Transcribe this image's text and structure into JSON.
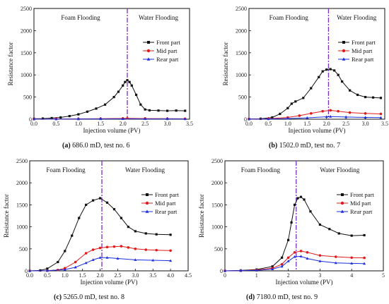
{
  "chart_data": [
    {
      "id": "a",
      "type": "line",
      "caption_letter": "(a)",
      "caption_text": " 686.0 mD, test no. 6",
      "xlabel": "Injection volume (PV)",
      "ylabel": "Resistance factor",
      "xlim": [
        0,
        3.5
      ],
      "ylim": [
        0,
        2500
      ],
      "xticks": [
        "0.0",
        "0.5",
        "1.0",
        "1.5",
        "2.0",
        "2.5",
        "3.0",
        "3.5"
      ],
      "yticks": [
        "0",
        "500",
        "1000",
        "1500",
        "2000",
        "2500"
      ],
      "divider_x": 2.1,
      "region_left": "Foam Flooding",
      "region_right": "Water Flooding",
      "legend_position": "right",
      "series": [
        {
          "name": "Front part",
          "color": "#111111",
          "marker": "square",
          "x": [
            0,
            0.2,
            0.4,
            0.6,
            0.8,
            1.0,
            1.2,
            1.4,
            1.6,
            1.8,
            1.9,
            2.0,
            2.05,
            2.1,
            2.15,
            2.2,
            2.3,
            2.4,
            2.5,
            2.6,
            2.8,
            3.0,
            3.2,
            3.4
          ],
          "y": [
            10,
            15,
            25,
            40,
            70,
            110,
            170,
            240,
            330,
            500,
            620,
            760,
            840,
            880,
            840,
            760,
            550,
            330,
            220,
            200,
            195,
            190,
            195,
            190
          ]
        },
        {
          "name": "Mid part",
          "color": "#e01b1b",
          "marker": "circle",
          "x": [
            0,
            0.5,
            1.0,
            1.5,
            2.0,
            2.1,
            2.5,
            3.0,
            3.4
          ],
          "y": [
            2,
            5,
            8,
            12,
            18,
            20,
            15,
            12,
            10
          ]
        },
        {
          "name": "Rear part",
          "color": "#1b2fe0",
          "marker": "triangle",
          "x": [
            0,
            0.5,
            1.0,
            1.5,
            2.0,
            2.5,
            3.0,
            3.4
          ],
          "y": [
            1,
            2,
            4,
            6,
            8,
            7,
            6,
            5
          ]
        }
      ]
    },
    {
      "id": "b",
      "type": "line",
      "caption_letter": "(b)",
      "caption_text": " 1502.0 mD, test no. 7",
      "xlabel": "Injection volume (PV)",
      "ylabel": "Resistance factor",
      "xlim": [
        0,
        3.5
      ],
      "ylim": [
        0,
        2500
      ],
      "xticks": [
        "0.0",
        "0.5",
        "1.0",
        "1.5",
        "2.0",
        "2.5",
        "3.0",
        "3.5"
      ],
      "yticks": [
        "0",
        "500",
        "1000",
        "1500",
        "2000",
        "2500"
      ],
      "divider_x": 2.05,
      "region_left": "Foam Flooding",
      "region_right": "Water Flooding",
      "legend_position": "right",
      "series": [
        {
          "name": "Front part",
          "color": "#111111",
          "marker": "square",
          "x": [
            0,
            0.3,
            0.6,
            0.8,
            1.0,
            1.1,
            1.2,
            1.4,
            1.6,
            1.8,
            1.9,
            2.0,
            2.1,
            2.2,
            2.3,
            2.4,
            2.6,
            2.8,
            3.0,
            3.2,
            3.4
          ],
          "y": [
            5,
            10,
            40,
            120,
            250,
            350,
            400,
            480,
            700,
            950,
            1080,
            1120,
            1130,
            1100,
            1000,
            850,
            650,
            550,
            500,
            490,
            480
          ]
        },
        {
          "name": "Mid part",
          "color": "#e01b1b",
          "marker": "circle",
          "x": [
            0,
            0.5,
            1.0,
            1.3,
            1.6,
            1.9,
            2.1,
            2.3,
            2.6,
            3.0,
            3.4
          ],
          "y": [
            5,
            10,
            40,
            80,
            130,
            180,
            200,
            180,
            150,
            130,
            120
          ]
        },
        {
          "name": "Rear part",
          "color": "#1b2fe0",
          "marker": "triangle",
          "x": [
            0,
            0.5,
            1.0,
            1.5,
            2.0,
            2.1,
            2.5,
            3.0,
            3.4
          ],
          "y": [
            2,
            5,
            15,
            30,
            55,
            60,
            50,
            40,
            35
          ]
        }
      ]
    },
    {
      "id": "c",
      "type": "line",
      "caption_letter": "(c)",
      "caption_text": " 5265.0 mD, test no. 8",
      "xlabel": "Injection volume (PV)",
      "ylabel": "Resistance factor",
      "xlim": [
        0,
        4.5
      ],
      "ylim": [
        0,
        2500
      ],
      "xticks": [
        "0.0",
        "0.5",
        "1.0",
        "1.5",
        "2.0",
        "2.5",
        "3.0",
        "3.5",
        "4.0",
        "4.5"
      ],
      "yticks": [
        "0",
        "500",
        "1000",
        "1500",
        "2000",
        "2500"
      ],
      "divider_x": 2.05,
      "region_left": "Foam Flooding",
      "region_right": "Water Flooding",
      "legend_position": "right",
      "series": [
        {
          "name": "Front part",
          "color": "#111111",
          "marker": "square",
          "x": [
            0,
            0.3,
            0.5,
            0.8,
            1.0,
            1.2,
            1.4,
            1.6,
            1.8,
            2.0,
            2.2,
            2.4,
            2.6,
            2.8,
            3.0,
            3.3,
            3.6,
            4.0
          ],
          "y": [
            0,
            10,
            50,
            200,
            450,
            800,
            1200,
            1500,
            1600,
            1650,
            1550,
            1400,
            1200,
            1000,
            900,
            850,
            830,
            820
          ]
        },
        {
          "name": "Mid part",
          "color": "#e01b1b",
          "marker": "circle",
          "x": [
            0,
            0.5,
            0.8,
            1.0,
            1.3,
            1.6,
            1.8,
            2.0,
            2.2,
            2.4,
            2.6,
            2.8,
            3.0,
            3.3,
            3.6,
            4.0
          ],
          "y": [
            0,
            5,
            20,
            60,
            200,
            400,
            480,
            520,
            540,
            550,
            560,
            530,
            500,
            480,
            470,
            460
          ]
        },
        {
          "name": "Rear part",
          "color": "#1b2fe0",
          "marker": "triangle",
          "x": [
            0,
            0.5,
            1.0,
            1.3,
            1.6,
            1.8,
            2.0,
            2.2,
            2.5,
            3.0,
            3.5,
            4.0
          ],
          "y": [
            0,
            5,
            30,
            80,
            180,
            250,
            300,
            300,
            280,
            250,
            240,
            230
          ]
        }
      ]
    },
    {
      "id": "d",
      "type": "line",
      "caption_letter": "(d)",
      "caption_text": " 7180.0 mD, test no. 9",
      "xlabel": "Injection volume (PV)",
      "ylabel": "Resistance factor",
      "xlim": [
        0,
        5
      ],
      "ylim": [
        0,
        2500
      ],
      "xticks": [
        "0",
        "1",
        "2",
        "3",
        "4",
        "5"
      ],
      "yticks": [
        "0",
        "500",
        "1000",
        "1500",
        "2000",
        "2500"
      ],
      "divider_x": 2.25,
      "region_left": "Foam Flooding",
      "region_right": "Water Flooding",
      "legend_position": "right",
      "series": [
        {
          "name": "Front part",
          "color": "#111111",
          "marker": "square",
          "x": [
            0,
            0.5,
            1.0,
            1.5,
            1.8,
            2.0,
            2.1,
            2.2,
            2.3,
            2.4,
            2.5,
            2.7,
            3.0,
            3.3,
            3.6,
            4.0,
            4.4
          ],
          "y": [
            0,
            10,
            30,
            100,
            300,
            700,
            1100,
            1500,
            1650,
            1680,
            1620,
            1350,
            1050,
            950,
            850,
            800,
            810
          ]
        },
        {
          "name": "Mid part",
          "color": "#e01b1b",
          "marker": "circle",
          "x": [
            0,
            0.5,
            1.0,
            1.5,
            1.8,
            2.0,
            2.2,
            2.4,
            2.6,
            3.0,
            3.5,
            4.0,
            4.4
          ],
          "y": [
            0,
            5,
            20,
            60,
            150,
            300,
            420,
            450,
            420,
            350,
            320,
            300,
            295
          ]
        },
        {
          "name": "Rear part",
          "color": "#1b2fe0",
          "marker": "triangle",
          "x": [
            0,
            0.5,
            1.0,
            1.5,
            1.8,
            2.0,
            2.2,
            2.4,
            2.6,
            3.0,
            3.5,
            4.0,
            4.4
          ],
          "y": [
            0,
            3,
            10,
            40,
            100,
            220,
            320,
            330,
            280,
            220,
            180,
            170,
            165
          ]
        }
      ]
    }
  ]
}
